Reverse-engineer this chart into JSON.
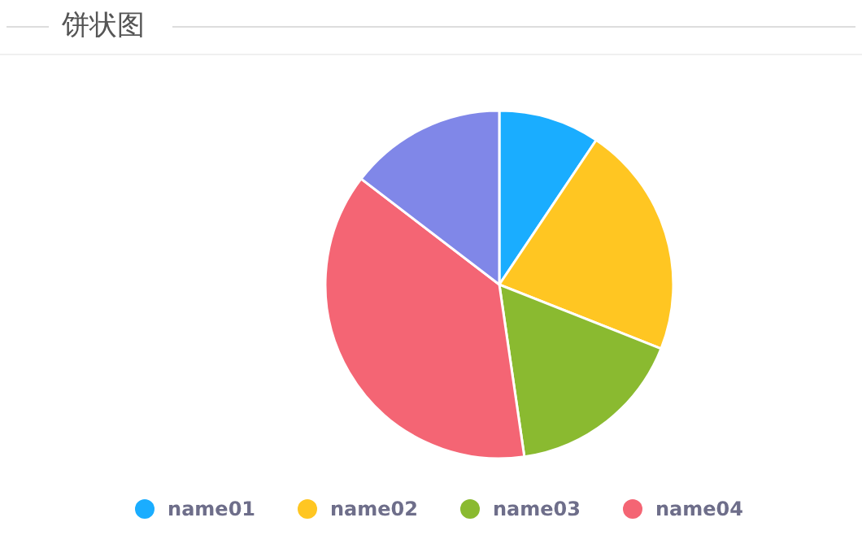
{
  "chart_data": {
    "type": "pie",
    "title": "饼状图",
    "categories": [
      "name01",
      "name02",
      "name03",
      "name04",
      null
    ],
    "values": [
      9.4,
      21.6,
      16.7,
      37.7,
      14.6
    ],
    "colors": [
      "#1aadff",
      "#ffc622",
      "#8aba30",
      "#f46574",
      "#8087e8"
    ],
    "legend": "bottom"
  }
}
